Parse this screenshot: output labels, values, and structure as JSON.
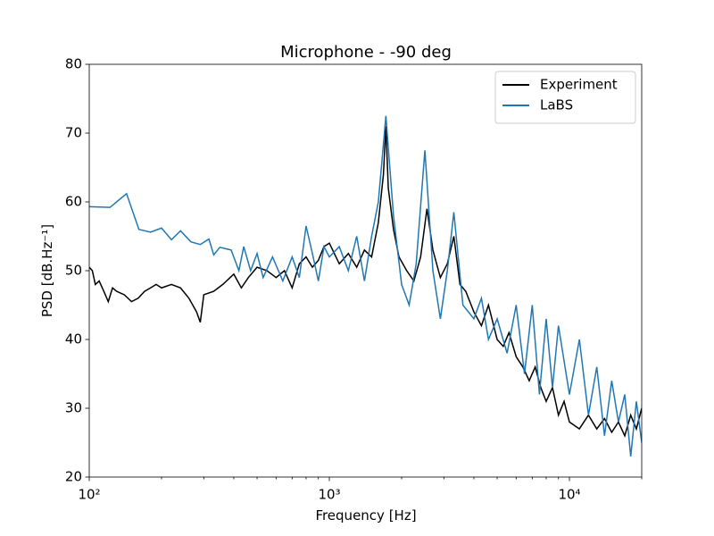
{
  "chart_data": {
    "type": "line",
    "title": "Microphone - -90 deg",
    "xlabel": "Frequency [Hz]",
    "ylabel": "PSD [dB.Hz⁻¹]",
    "xscale": "log",
    "xlim": [
      100,
      20000
    ],
    "ylim": [
      20,
      80
    ],
    "xticks": [
      {
        "value": 100,
        "label": "10²"
      },
      {
        "value": 1000,
        "label": "10³"
      },
      {
        "value": 10000,
        "label": "10⁴"
      }
    ],
    "yticks": [
      20,
      30,
      40,
      50,
      60,
      70,
      80
    ],
    "legend": "upper right",
    "series": [
      {
        "name": "Experiment",
        "color": "#000000",
        "x": [
          100,
          103,
          106,
          110,
          115,
          120,
          125,
          130,
          140,
          150,
          160,
          170,
          180,
          190,
          200,
          220,
          240,
          260,
          280,
          290,
          300,
          330,
          360,
          400,
          430,
          460,
          500,
          550,
          600,
          650,
          700,
          750,
          800,
          850,
          900,
          950,
          1000,
          1100,
          1200,
          1300,
          1400,
          1500,
          1600,
          1680,
          1720,
          1760,
          1850,
          1950,
          2100,
          2250,
          2400,
          2550,
          2700,
          2900,
          3100,
          3300,
          3500,
          3700,
          4000,
          4300,
          4600,
          5000,
          5300,
          5600,
          6000,
          6400,
          6800,
          7200,
          7600,
          8000,
          8500,
          9000,
          9500,
          10000,
          11000,
          12000,
          13000,
          14000,
          15000,
          16000,
          17000,
          18000,
          19000,
          20000
        ],
        "values": [
          50.5,
          50,
          48,
          48.5,
          47,
          45.5,
          47.5,
          47,
          46.5,
          45.5,
          46,
          47,
          47.5,
          48,
          47.5,
          48,
          47.5,
          46,
          44,
          42.5,
          46.5,
          47,
          48,
          49.5,
          47.5,
          49,
          50.5,
          50,
          49,
          50,
          47.5,
          51,
          52,
          50.5,
          51.5,
          53.5,
          54,
          51,
          52.5,
          50.5,
          53,
          52,
          57,
          64,
          71,
          62,
          56,
          52,
          50,
          48.5,
          52,
          59,
          53,
          49,
          51,
          55,
          48,
          47,
          44,
          42,
          45,
          40,
          39,
          41,
          37.5,
          36,
          34,
          36,
          33,
          31,
          33,
          29,
          31,
          28,
          27,
          29,
          27,
          28.5,
          26.5,
          28,
          26,
          29,
          27,
          30
        ]
      },
      {
        "name": "LaBS",
        "color": "#1f77b4",
        "x": [
          100,
          122,
          143,
          161,
          180,
          200,
          220,
          240,
          265,
          290,
          315,
          330,
          350,
          390,
          420,
          440,
          470,
          500,
          530,
          580,
          640,
          700,
          750,
          800,
          850,
          900,
          950,
          1000,
          1100,
          1200,
          1300,
          1400,
          1500,
          1600,
          1720,
          1850,
          2000,
          2150,
          2300,
          2500,
          2700,
          2900,
          3100,
          3300,
          3600,
          4000,
          4300,
          4600,
          5000,
          5500,
          6000,
          6500,
          7000,
          7500,
          8000,
          8500,
          9000,
          10000,
          11000,
          12000,
          13000,
          14000,
          15000,
          16000,
          17000,
          18000,
          19000,
          20000
        ],
        "values": [
          59.3,
          59.2,
          61.2,
          56,
          55.6,
          56.2,
          54.5,
          55.8,
          54.2,
          53.8,
          54.6,
          52.3,
          53.4,
          53,
          50,
          53.5,
          50,
          52.5,
          49,
          52,
          48.5,
          52,
          49,
          56.5,
          52.5,
          48.5,
          53.5,
          52,
          53.5,
          50,
          55,
          48.5,
          55,
          60,
          72.5,
          58,
          48,
          45,
          51,
          67.5,
          50,
          43,
          50,
          58.5,
          45,
          43,
          46,
          40,
          43,
          38,
          45,
          35,
          45,
          32,
          43,
          33,
          42,
          32,
          40,
          29,
          36,
          26,
          34,
          28,
          32,
          23,
          31,
          25
        ]
      }
    ]
  }
}
